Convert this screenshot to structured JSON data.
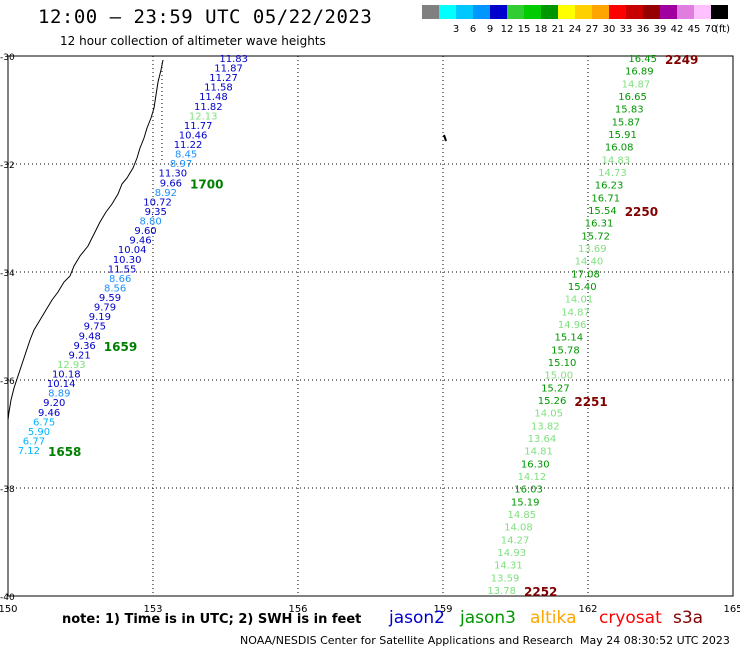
{
  "header": {
    "title": "12:00 – 23:59 UTC 05/22/2023",
    "subtitle": "12 hour collection of altimeter wave heights"
  },
  "legend": {
    "unit": "(ft)",
    "items": [
      {
        "label": "",
        "color": "#808080"
      },
      {
        "label": "3",
        "color": "#00ffff"
      },
      {
        "label": "6",
        "color": "#00c8ff"
      },
      {
        "label": "9",
        "color": "#0096ff"
      },
      {
        "label": "12",
        "color": "#0000cd"
      },
      {
        "label": "15",
        "color": "#32cd32"
      },
      {
        "label": "18",
        "color": "#00cc00"
      },
      {
        "label": "21",
        "color": "#009600"
      },
      {
        "label": "24",
        "color": "#ffff00"
      },
      {
        "label": "27",
        "color": "#ffd000"
      },
      {
        "label": "30",
        "color": "#ffa500"
      },
      {
        "label": "33",
        "color": "#ff0000"
      },
      {
        "label": "36",
        "color": "#c80000"
      },
      {
        "label": "39",
        "color": "#960000"
      },
      {
        "label": "42",
        "color": "#a000a0"
      },
      {
        "label": "45",
        "color": "#e07ee0"
      },
      {
        "label": "70",
        "color": "#ffc0ff"
      },
      {
        "label": "",
        "color": "#000000"
      }
    ]
  },
  "axes": {
    "lon_ticks": [
      "150",
      "153",
      "156",
      "159",
      "162",
      "165"
    ],
    "lat_ticks": [
      "-30",
      "-32",
      "-34",
      "-36",
      "-38",
      "-40"
    ]
  },
  "track_west": {
    "values": [
      {
        "v": "11.83",
        "c": "#0000cd"
      },
      {
        "v": "11.87",
        "c": "#0000cd"
      },
      {
        "v": "11.27",
        "c": "#0000cd"
      },
      {
        "v": "11.58",
        "c": "#0000cd"
      },
      {
        "v": "11.48",
        "c": "#0000cd"
      },
      {
        "v": "11.82",
        "c": "#0000cd"
      },
      {
        "v": "12.13",
        "c": "#7fe07f"
      },
      {
        "v": "11.77",
        "c": "#0000cd"
      },
      {
        "v": "10.46",
        "c": "#0000cd"
      },
      {
        "v": "11.22",
        "c": "#0000cd"
      },
      {
        "v": "8.45",
        "c": "#1e90ff"
      },
      {
        "v": "8.97",
        "c": "#1e90ff"
      },
      {
        "v": "11.30",
        "c": "#0000cd"
      },
      {
        "v": "9.66",
        "c": "#0000cd"
      },
      {
        "v": "8.92",
        "c": "#1e90ff"
      },
      {
        "v": "10.72",
        "c": "#0000cd"
      },
      {
        "v": "9.35",
        "c": "#0000cd"
      },
      {
        "v": "8.80",
        "c": "#1e90ff"
      },
      {
        "v": "9.60",
        "c": "#0000cd"
      },
      {
        "v": "9.46",
        "c": "#0000cd"
      },
      {
        "v": "10.04",
        "c": "#0000cd"
      },
      {
        "v": "10.30",
        "c": "#0000cd"
      },
      {
        "v": "11.55",
        "c": "#0000cd"
      },
      {
        "v": "8.66",
        "c": "#1e90ff"
      },
      {
        "v": "8.56",
        "c": "#1e90ff"
      },
      {
        "v": "9.59",
        "c": "#0000cd"
      },
      {
        "v": "9.79",
        "c": "#0000cd"
      },
      {
        "v": "9.19",
        "c": "#0000cd"
      },
      {
        "v": "9.75",
        "c": "#0000cd"
      },
      {
        "v": "9.48",
        "c": "#0000cd"
      },
      {
        "v": "9.36",
        "c": "#0000cd"
      },
      {
        "v": "9.21",
        "c": "#0000cd"
      },
      {
        "v": "12.93",
        "c": "#7fe07f"
      },
      {
        "v": "10.18",
        "c": "#0000cd"
      },
      {
        "v": "10.14",
        "c": "#0000cd"
      },
      {
        "v": "8.89",
        "c": "#1e90ff"
      },
      {
        "v": "9.20",
        "c": "#0000cd"
      },
      {
        "v": "9.46",
        "c": "#0000cd"
      },
      {
        "v": "6.75",
        "c": "#00b4ff"
      },
      {
        "v": "5.90",
        "c": "#00b4ff"
      },
      {
        "v": "6.77",
        "c": "#00b4ff"
      },
      {
        "v": "7.12",
        "c": "#00b4ff"
      }
    ],
    "times": [
      {
        "t": "1700",
        "c": "#008000"
      },
      {
        "t": "1659",
        "c": "#008000"
      },
      {
        "t": "1658",
        "c": "#008000"
      }
    ]
  },
  "track_east": {
    "values": [
      {
        "v": "16.45",
        "c": "#009600"
      },
      {
        "v": "16.89",
        "c": "#009600"
      },
      {
        "v": "14.87",
        "c": "#7fe07f"
      },
      {
        "v": "16.65",
        "c": "#009600"
      },
      {
        "v": "15.83",
        "c": "#009600"
      },
      {
        "v": "15.87",
        "c": "#009600"
      },
      {
        "v": "15.91",
        "c": "#009600"
      },
      {
        "v": "16.08",
        "c": "#009600"
      },
      {
        "v": "14.83",
        "c": "#7fe07f"
      },
      {
        "v": "14.73",
        "c": "#7fe07f"
      },
      {
        "v": "16.23",
        "c": "#009600"
      },
      {
        "v": "16.71",
        "c": "#009600"
      },
      {
        "v": "15.54",
        "c": "#009600"
      },
      {
        "v": "16.31",
        "c": "#009600"
      },
      {
        "v": "15.72",
        "c": "#009600"
      },
      {
        "v": "13.69",
        "c": "#7fe07f"
      },
      {
        "v": "14.40",
        "c": "#7fe07f"
      },
      {
        "v": "17.08",
        "c": "#009600"
      },
      {
        "v": "15.40",
        "c": "#009600"
      },
      {
        "v": "14.01",
        "c": "#7fe07f"
      },
      {
        "v": "14.87",
        "c": "#7fe07f"
      },
      {
        "v": "14.96",
        "c": "#7fe07f"
      },
      {
        "v": "15.14",
        "c": "#009600"
      },
      {
        "v": "15.78",
        "c": "#009600"
      },
      {
        "v": "15.10",
        "c": "#009600"
      },
      {
        "v": "15.00",
        "c": "#7fe07f"
      },
      {
        "v": "15.27",
        "c": "#009600"
      },
      {
        "v": "15.26",
        "c": "#009600"
      },
      {
        "v": "14.05",
        "c": "#7fe07f"
      },
      {
        "v": "13.82",
        "c": "#7fe07f"
      },
      {
        "v": "13.64",
        "c": "#7fe07f"
      },
      {
        "v": "14.81",
        "c": "#7fe07f"
      },
      {
        "v": "16.30",
        "c": "#009600"
      },
      {
        "v": "14.12",
        "c": "#7fe07f"
      },
      {
        "v": "16.03",
        "c": "#009600"
      },
      {
        "v": "15.19",
        "c": "#009600"
      },
      {
        "v": "14.85",
        "c": "#7fe07f"
      },
      {
        "v": "14.08",
        "c": "#7fe07f"
      },
      {
        "v": "14.27",
        "c": "#7fe07f"
      },
      {
        "v": "14.93",
        "c": "#7fe07f"
      },
      {
        "v": "14.31",
        "c": "#7fe07f"
      },
      {
        "v": "13.59",
        "c": "#7fe07f"
      },
      {
        "v": "13.78",
        "c": "#7fe07f"
      }
    ],
    "times": [
      {
        "t": "2249",
        "c": "#800000"
      },
      {
        "t": "2250",
        "c": "#800000"
      },
      {
        "t": "2251",
        "c": "#800000"
      },
      {
        "t": "2252",
        "c": "#800000"
      }
    ]
  },
  "footer": {
    "note": "note:  1) Time is in UTC;  2) SWH is in feet",
    "satellites": [
      {
        "name": "jason2",
        "color": "#0000cd"
      },
      {
        "name": "jason3",
        "color": "#009600"
      },
      {
        "name": "altika",
        "color": "#ffa500"
      },
      {
        "name": "cryosat",
        "color": "#ff0000"
      },
      {
        "name": "s3a",
        "color": "#800000"
      }
    ],
    "credit": "NOAA/NESDIS Center for Satellite Applications and Research",
    "generated": "May 24 08:30:52 UTC 2023"
  }
}
